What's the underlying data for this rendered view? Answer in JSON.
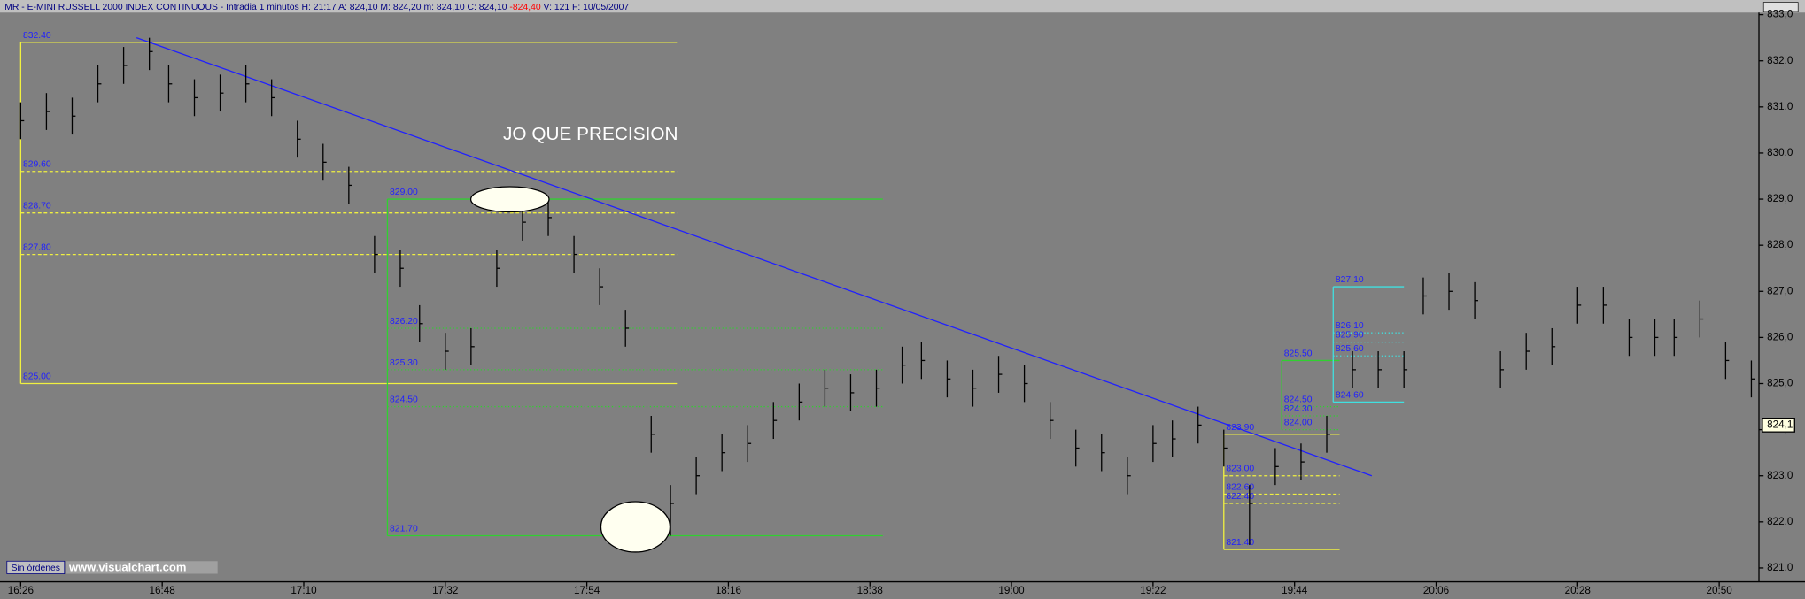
{
  "chart_data": {
    "type": "ohlc",
    "title": "MR - E-MINI RUSSELL 2000 INDEX CONTINUOUS - Intradia 1 minutos H: 21:17 A: 824,10 M: 824,20 m: 824,10 C: 824,10",
    "title_change": "-824,40",
    "title_tail": "V: 121 F: 10/05/2007",
    "annotation": "JO QUE PRECISION",
    "status": "Sin órdenes",
    "watermark": "www.visualchart.com",
    "last_price": {
      "value": 824.1,
      "label": "824,1"
    },
    "color": "#000000",
    "x": [
      986,
      990,
      994,
      998,
      1002,
      1006,
      1009,
      1013,
      1017,
      1021,
      1025,
      1029,
      1033,
      1037,
      1041,
      1045,
      1048,
      1052,
      1056,
      1060,
      1064,
      1068,
      1072,
      1076,
      1080,
      1084,
      1087,
      1091,
      1095,
      1099,
      1103,
      1107,
      1111,
      1115,
      1119,
      1123,
      1126,
      1130,
      1134,
      1138,
      1142,
      1146,
      1150,
      1154,
      1158,
      1162,
      1165,
      1169,
      1173,
      1177,
      1181,
      1185,
      1189,
      1193,
      1197,
      1201,
      1204,
      1208,
      1212,
      1216,
      1220,
      1224,
      1228,
      1232,
      1236,
      1240,
      1243,
      1247,
      1251,
      1255
    ],
    "high": [
      831.1,
      831.3,
      831.2,
      831.9,
      832.3,
      832.5,
      831.9,
      831.6,
      831.7,
      831.9,
      831.6,
      830.7,
      830.2,
      829.7,
      828.2,
      827.9,
      826.7,
      826.1,
      826.2,
      827.9,
      828.9,
      829.0,
      828.2,
      827.5,
      826.6,
      824.3,
      822.8,
      823.4,
      823.9,
      824.1,
      824.6,
      825.0,
      825.3,
      825.2,
      825.3,
      825.8,
      825.9,
      825.5,
      825.3,
      825.6,
      825.4,
      824.6,
      824.0,
      823.9,
      823.4,
      824.1,
      824.2,
      824.5,
      824.0,
      822.8,
      823.6,
      823.7,
      824.3,
      825.7,
      825.7,
      825.7,
      827.3,
      827.4,
      827.2,
      825.7,
      826.1,
      826.2,
      827.1,
      827.1,
      826.4,
      826.4,
      826.4,
      826.8,
      825.9,
      825.5
    ],
    "low": [
      830.3,
      830.5,
      830.4,
      831.1,
      831.5,
      831.8,
      831.1,
      830.8,
      830.9,
      831.1,
      830.8,
      829.9,
      829.4,
      828.9,
      827.4,
      827.1,
      825.9,
      825.3,
      825.4,
      827.1,
      828.1,
      828.2,
      827.4,
      826.7,
      825.8,
      823.5,
      821.7,
      822.6,
      823.1,
      823.3,
      823.8,
      824.2,
      824.5,
      824.4,
      824.5,
      825.0,
      825.1,
      824.7,
      824.5,
      824.8,
      824.6,
      823.8,
      823.2,
      823.1,
      822.6,
      823.3,
      823.4,
      823.7,
      823.2,
      821.5,
      822.8,
      822.9,
      823.5,
      824.9,
      824.9,
      824.9,
      826.5,
      826.6,
      826.4,
      824.9,
      825.3,
      825.4,
      826.3,
      826.3,
      825.6,
      825.6,
      825.6,
      826.0,
      825.1,
      824.7
    ],
    "close": [
      830.7,
      830.9,
      830.8,
      831.5,
      831.9,
      832.2,
      831.5,
      831.2,
      831.3,
      831.5,
      831.2,
      830.3,
      829.8,
      829.3,
      827.8,
      827.5,
      826.3,
      825.7,
      825.8,
      827.5,
      828.5,
      828.6,
      827.8,
      827.1,
      826.2,
      823.9,
      822.4,
      823.0,
      823.5,
      823.7,
      824.2,
      824.6,
      824.9,
      824.8,
      824.9,
      825.4,
      825.5,
      825.1,
      824.9,
      825.2,
      825.0,
      824.2,
      823.6,
      823.5,
      823.0,
      823.7,
      823.8,
      824.1,
      823.6,
      822.4,
      823.2,
      823.3,
      823.9,
      825.3,
      825.3,
      825.3,
      826.9,
      827.0,
      826.8,
      825.3,
      825.7,
      825.8,
      826.7,
      826.7,
      826.0,
      826.0,
      826.0,
      826.4,
      825.5,
      825.1
    ],
    "xlim": [
      984,
      1256
    ],
    "xticks": [
      {
        "value": 986,
        "label": "16:26"
      },
      {
        "value": 1008,
        "label": "16:48"
      },
      {
        "value": 1030,
        "label": "17:10"
      },
      {
        "value": 1052,
        "label": "17:32"
      },
      {
        "value": 1074,
        "label": "17:54"
      },
      {
        "value": 1096,
        "label": "18:16"
      },
      {
        "value": 1118,
        "label": "18:38"
      },
      {
        "value": 1140,
        "label": "19:00"
      },
      {
        "value": 1162,
        "label": "19:22"
      },
      {
        "value": 1184,
        "label": "19:44"
      },
      {
        "value": 1206,
        "label": "20:06"
      },
      {
        "value": 1228,
        "label": "20:28"
      },
      {
        "value": 1250,
        "label": "20:50"
      }
    ],
    "ylim": [
      820.7,
      833.12
    ],
    "yticks": [
      {
        "value": 821,
        "label": "821,0"
      },
      {
        "value": 822,
        "label": "822,0"
      },
      {
        "value": 823,
        "label": "823,0"
      },
      {
        "value": 824,
        "label": "824,0"
      },
      {
        "value": 825,
        "label": "825,0"
      },
      {
        "value": 826,
        "label": "826,0"
      },
      {
        "value": 827,
        "label": "827,0"
      },
      {
        "value": 828,
        "label": "828,0"
      },
      {
        "value": 829,
        "label": "829,0"
      },
      {
        "value": 830,
        "label": "830,0"
      },
      {
        "value": 831,
        "label": "831,0"
      },
      {
        "value": 832,
        "label": "832,0"
      },
      {
        "value": 833,
        "label": "833,0"
      }
    ],
    "trendline": {
      "x": [
        1004,
        1196
      ],
      "y": [
        832.5,
        823.0
      ],
      "color": "#2020ff"
    },
    "boxes": [
      {
        "color": "#f0f040",
        "from": 986,
        "to": 1088,
        "levels": [
          {
            "value": 832.4,
            "label": "832.40",
            "style": "solid"
          },
          {
            "value": 829.6,
            "label": "829.60",
            "style": "dashed"
          },
          {
            "value": 828.7,
            "label": "828.70",
            "style": "dashed"
          },
          {
            "value": 827.8,
            "label": "827.80",
            "style": "dashed"
          },
          {
            "value": 825.0,
            "label": "825.00",
            "style": "solid"
          }
        ]
      },
      {
        "color": "#30d030",
        "from": 1043,
        "to": 1120,
        "levels": [
          {
            "value": 829.0,
            "label": "829.00",
            "style": "solid"
          },
          {
            "value": 826.2,
            "label": "826.20",
            "style": "dotted"
          },
          {
            "value": 825.3,
            "label": "825.30",
            "style": "dotted"
          },
          {
            "value": 824.5,
            "label": "824.50",
            "style": "dotted"
          },
          {
            "value": 821.7,
            "label": "821.70",
            "style": "solid"
          }
        ]
      },
      {
        "color": "#f0f040",
        "from": 1173,
        "to": 1191,
        "levels": [
          {
            "value": 823.9,
            "label": "823.90",
            "style": "solid"
          },
          {
            "value": 823.0,
            "label": "823.00",
            "style": "dashed"
          },
          {
            "value": 822.6,
            "label": "822.60",
            "style": "dashed"
          },
          {
            "value": 822.4,
            "label": "822.40",
            "style": "dashed"
          },
          {
            "value": 821.4,
            "label": "821.40",
            "style": "solid"
          }
        ]
      },
      {
        "color": "#30d030",
        "from": 1182,
        "to": 1191,
        "levels": [
          {
            "value": 825.5,
            "label": "825.50",
            "style": "solid"
          },
          {
            "value": 824.5,
            "label": "824.50",
            "style": "dotted"
          },
          {
            "value": 824.3,
            "label": "824.30",
            "style": "dotted"
          },
          {
            "value": 824.0,
            "label": "824.00",
            "style": "dotted"
          }
        ]
      },
      {
        "color": "#40e0e0",
        "from": 1190,
        "to": 1201,
        "levels": [
          {
            "value": 827.1,
            "label": "827.10",
            "style": "solid"
          },
          {
            "value": 826.1,
            "label": "826.10",
            "style": "dotted"
          },
          {
            "value": 825.9,
            "label": "825.90",
            "style": "dotted"
          },
          {
            "value": 825.6,
            "label": "825.60",
            "style": "dotted"
          },
          {
            "value": 824.6,
            "label": "824.60",
            "style": "solid"
          }
        ]
      }
    ]
  }
}
